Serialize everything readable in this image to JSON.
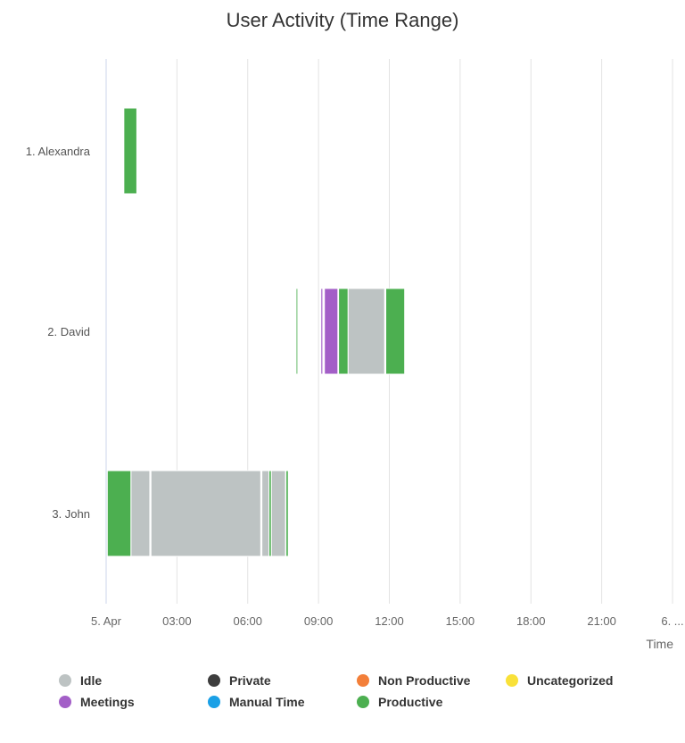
{
  "chart_data": {
    "type": "xrange",
    "title": "User Activity (Time Range)",
    "xlabel": "Time",
    "x_unit": "hours since 5. Apr 00:00",
    "xlim": [
      0,
      24
    ],
    "xticks": [
      {
        "value": 0,
        "label": "5. Apr"
      },
      {
        "value": 3,
        "label": "03:00"
      },
      {
        "value": 6,
        "label": "06:00"
      },
      {
        "value": 9,
        "label": "09:00"
      },
      {
        "value": 12,
        "label": "12:00"
      },
      {
        "value": 15,
        "label": "15:00"
      },
      {
        "value": 18,
        "label": "18:00"
      },
      {
        "value": 21,
        "label": "21:00"
      },
      {
        "value": 24,
        "label": "6. ..."
      }
    ],
    "categories": [
      "1. Alexandra",
      "2. David",
      "3. John"
    ],
    "series": [
      {
        "name": "Idle",
        "color": "#bdc3c3",
        "segments": [
          {
            "row": 2,
            "start": 1.05,
            "end": 1.85
          },
          {
            "row": 2,
            "start": 1.9,
            "end": 6.55
          },
          {
            "row": 2,
            "start": 6.6,
            "end": 6.9
          },
          {
            "row": 2,
            "start": 7.0,
            "end": 7.6
          },
          {
            "row": 1,
            "start": 10.25,
            "end": 11.8
          }
        ]
      },
      {
        "name": "Private",
        "color": "#3d3d3d",
        "segments": []
      },
      {
        "name": "Non Productive",
        "color": "#f37f39",
        "segments": []
      },
      {
        "name": "Uncategorized",
        "color": "#f9e139",
        "segments": []
      },
      {
        "name": "Meetings",
        "color": "#a35fc7",
        "segments": [
          {
            "row": 1,
            "start": 9.1,
            "end": 9.18
          },
          {
            "row": 1,
            "start": 9.25,
            "end": 9.82
          }
        ]
      },
      {
        "name": "Manual Time",
        "color": "#1aa0e6",
        "segments": []
      },
      {
        "name": "Productive",
        "color": "#4caf50",
        "segments": [
          {
            "row": 0,
            "start": 0.75,
            "end": 1.3
          },
          {
            "row": 1,
            "start": 8.05,
            "end": 8.12
          },
          {
            "row": 1,
            "start": 9.85,
            "end": 10.25
          },
          {
            "row": 1,
            "start": 11.85,
            "end": 12.65
          },
          {
            "row": 2,
            "start": 0.05,
            "end": 1.05
          },
          {
            "row": 2,
            "start": 6.9,
            "end": 7.0
          },
          {
            "row": 2,
            "start": 7.62,
            "end": 7.72
          }
        ]
      }
    ]
  },
  "legend": [
    {
      "name": "Idle",
      "color": "#bdc3c3"
    },
    {
      "name": "Private",
      "color": "#3d3d3d"
    },
    {
      "name": "Non Productive",
      "color": "#f37f39"
    },
    {
      "name": "Uncategorized",
      "color": "#f9e139"
    },
    {
      "name": "Meetings",
      "color": "#a35fc7"
    },
    {
      "name": "Manual Time",
      "color": "#1aa0e6"
    },
    {
      "name": "Productive",
      "color": "#4caf50"
    }
  ]
}
